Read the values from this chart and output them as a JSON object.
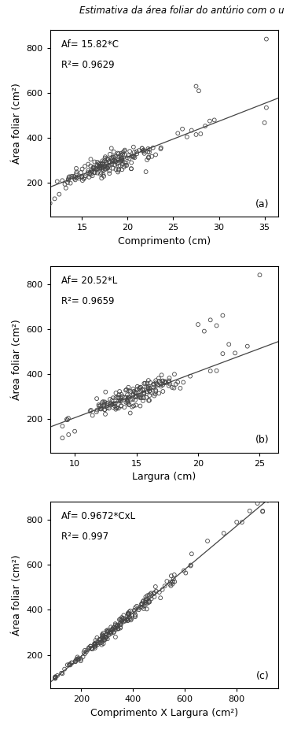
{
  "title": "Estimativa da área foliar do antúrio com o u",
  "title_fontsize": 8.5,
  "subplot_a": {
    "equation": "Af= 15.82*C",
    "r2": "R²= 0.9629",
    "xlabel": "Comprimento (cm)",
    "ylabel": "Área foliar (cm²)",
    "label": "(a)",
    "xlim": [
      11.5,
      36.5
    ],
    "ylim": [
      50,
      880
    ],
    "xticks": [
      15,
      20,
      25,
      30,
      35
    ],
    "yticks": [
      200,
      400,
      600,
      800
    ],
    "slope": 15.82,
    "x_range": [
      11.0,
      36.5
    ]
  },
  "subplot_b": {
    "equation": "Af= 20.52*L",
    "r2": "R²= 0.9659",
    "xlabel": "Largura (cm)",
    "ylabel": "Área foliar (cm²)",
    "label": "(b)",
    "xlim": [
      8.0,
      26.5
    ],
    "ylim": [
      50,
      880
    ],
    "xticks": [
      10,
      15,
      20,
      25
    ],
    "yticks": [
      200,
      400,
      600,
      800
    ],
    "slope": 20.52,
    "x_range": [
      7.5,
      26.5
    ]
  },
  "subplot_c": {
    "equation": "Af= 0.9672*CxL",
    "r2": "R²= 0.997",
    "xlabel": "Comprimento X Largura (cm²)",
    "ylabel": "Área foliar (cm²)",
    "label": "(c)",
    "xlim": [
      80,
      960
    ],
    "ylim": [
      50,
      880
    ],
    "xticks": [
      200,
      400,
      600,
      800
    ],
    "yticks": [
      200,
      400,
      600,
      800
    ],
    "slope": 0.9672,
    "x_range": [
      80,
      950
    ]
  },
  "marker_size": 3.5,
  "marker_facecolor": "none",
  "marker_edgecolor": "#444444",
  "marker_linewidth": 0.6,
  "line_color": "#444444",
  "line_width": 0.9,
  "annotation_fontsize": 8.5,
  "axis_label_fontsize": 9,
  "tick_fontsize": 8,
  "label_fontsize": 9,
  "background_color": "#ffffff",
  "plot_background": "#ffffff"
}
